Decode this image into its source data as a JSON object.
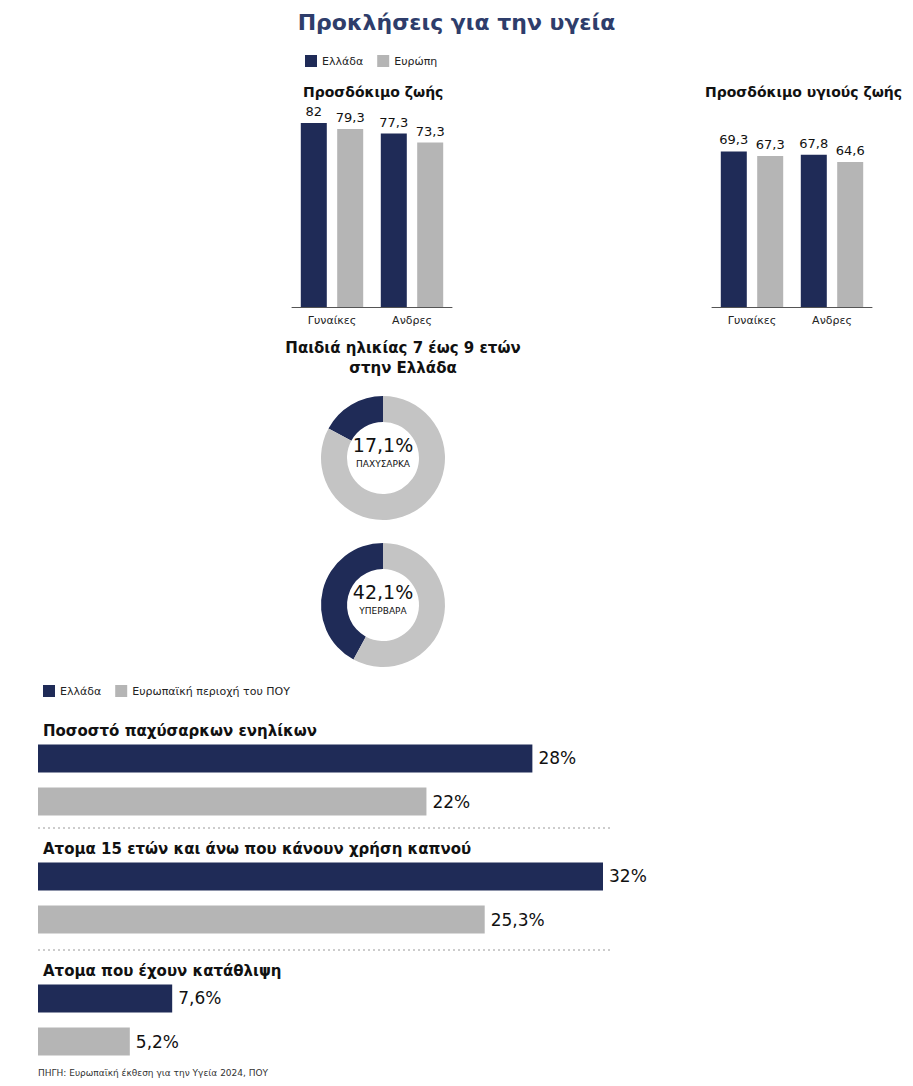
{
  "title": "Προκλήσεις για την υγεία",
  "source": "ΠΗΓΗ: Ευρωπαϊκή έκθεση για την Υγεία 2024, ΠΟΥ",
  "chart_data": [
    {
      "type": "bar",
      "title": "Προσδόκιμο ζωής",
      "categories": [
        "Γυναίκες",
        "Ανδρες"
      ],
      "series": [
        {
          "name": "Ελλάδα",
          "color": "#1f2b57",
          "values": [
            82,
            77.3
          ],
          "value_labels": [
            "82",
            "77,3"
          ]
        },
        {
          "name": "Ευρώπη",
          "color": "#b5b5b5",
          "values": [
            79.3,
            73.3
          ],
          "value_labels": [
            "79,3",
            "73,3"
          ]
        }
      ],
      "ylim": [
        0,
        82
      ],
      "data_labels": true,
      "tick_labels": "x",
      "grid": false,
      "legend": "top"
    },
    {
      "type": "bar",
      "title": "Προσδόκιμο υγιούς ζωής",
      "categories": [
        "Γυναίκες",
        "Ανδρες"
      ],
      "series": [
        {
          "name": "Ελλάδα",
          "color": "#1f2b57",
          "values": [
            69.3,
            67.8
          ],
          "value_labels": [
            "69,3",
            "67,8"
          ]
        },
        {
          "name": "Ευρώπη",
          "color": "#b5b5b5",
          "values": [
            67.3,
            64.6
          ],
          "value_labels": [
            "67,3",
            "64,6"
          ]
        }
      ],
      "ylim": [
        0,
        82
      ],
      "data_labels": true,
      "tick_labels": "x",
      "grid": false
    },
    {
      "type": "pie",
      "title": "Παιδιά ηλικίας 7 έως 9 ετών στην Ελλάδα",
      "categories": [
        "ΠΑΧΥΣΑΡΚΑ",
        null
      ],
      "values": [
        17.1,
        82.9
      ],
      "value_labels": [
        "17,1%",
        null
      ],
      "colors": [
        "#1f2b57",
        "#c4c4c4"
      ]
    },
    {
      "type": "pie",
      "categories": [
        "ΥΠΕΡΒΑΡΑ",
        null
      ],
      "values": [
        42.1,
        57.9
      ],
      "value_labels": [
        "42,1%",
        null
      ],
      "colors": [
        "#1f2b57",
        "#c4c4c4"
      ]
    },
    {
      "type": "bar",
      "orientation": "horizontal",
      "title": "Ποσοστό παχύσαρκων ενηλίκων",
      "categories": [
        null
      ],
      "series": [
        {
          "name": "Ελλάδα",
          "color": "#1f2b57",
          "values": [
            28
          ],
          "value_labels": [
            "28%"
          ]
        },
        {
          "name": "Ευρωπαϊκή περιοχή του ΠΟΥ",
          "color": "#b5b5b5",
          "values": [
            22
          ],
          "value_labels": [
            "22%"
          ]
        }
      ],
      "xlim": [
        0,
        32
      ],
      "data_labels": true,
      "tick_labels": false,
      "grid": false,
      "legend": "top"
    },
    {
      "type": "bar",
      "orientation": "horizontal",
      "title": "Ατομα 15 ετών και άνω που κάνουν χρήση καπνού",
      "categories": [
        null
      ],
      "series": [
        {
          "name": "Ελλάδα",
          "color": "#1f2b57",
          "values": [
            32
          ],
          "value_labels": [
            "32%"
          ]
        },
        {
          "name": "Ευρωπαϊκή περιοχή του ΠΟΥ",
          "color": "#b5b5b5",
          "values": [
            25.3
          ],
          "value_labels": [
            "25,3%"
          ]
        }
      ],
      "xlim": [
        0,
        32
      ],
      "data_labels": true,
      "tick_labels": false,
      "grid": false
    },
    {
      "type": "bar",
      "orientation": "horizontal",
      "title": "Ατομα που έχουν κατάθλιψη",
      "categories": [
        null
      ],
      "series": [
        {
          "name": "Ελλάδα",
          "color": "#1f2b57",
          "values": [
            7.6
          ],
          "value_labels": [
            "7,6%"
          ]
        },
        {
          "name": "Ευρωπαϊκή περιοχή του ΠΟΥ",
          "color": "#b5b5b5",
          "values": [
            5.2
          ],
          "value_labels": [
            "5,2%"
          ]
        }
      ],
      "xlim": [
        0,
        32
      ],
      "data_labels": true,
      "tick_labels": false,
      "grid": false
    }
  ]
}
